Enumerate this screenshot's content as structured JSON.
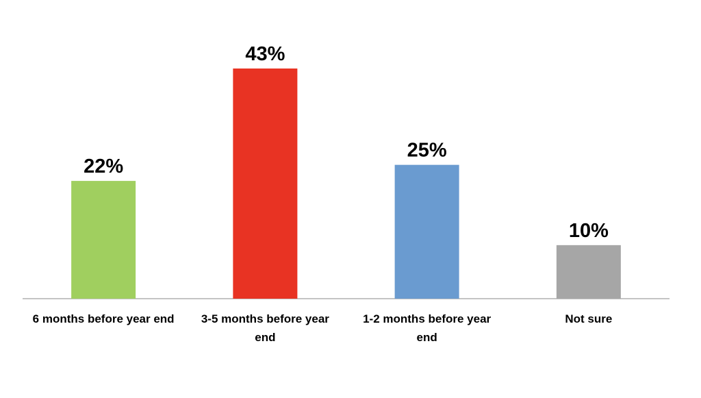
{
  "chart_data": {
    "type": "bar",
    "categories": [
      "6 months before year end",
      "3-5 months before year end",
      "1-2 months before year end",
      "Not sure"
    ],
    "values": [
      22,
      43,
      25,
      10
    ],
    "value_labels": [
      "22%",
      "43%",
      "25%",
      "10%"
    ],
    "colors": [
      "#a0cf5f",
      "#e83323",
      "#6a9bd0",
      "#a6a6a6"
    ]
  }
}
